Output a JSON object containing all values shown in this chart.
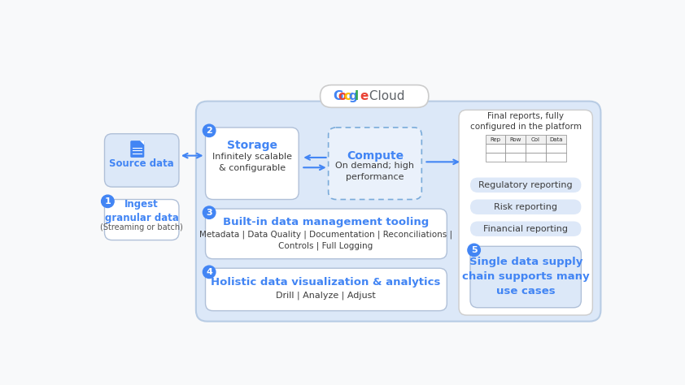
{
  "bg_color": "#f8f9fa",
  "main_bg": "#dce8f8",
  "panel_bg": "#eaf1fb",
  "box_bg": "#ffffff",
  "blue_circle": "#4285f4",
  "blue_text": "#4285f4",
  "dark_text": "#3c3c3c",
  "gray_text": "#555555",
  "pill_bg": "#dde8f8",
  "source_box_bg": "#dce8f8",
  "ingest_box_bg": "#ffffff",
  "right_panel_bg": "#ffffff",
  "arrow_color": "#4285f4",
  "google_blue": "#4285f4",
  "google_red": "#ea4335",
  "google_yellow": "#fbbc04",
  "google_green": "#34a853",
  "storage_title": "Storage",
  "storage_sub": "Infinitely scalable\n& configurable",
  "compute_title": "Compute",
  "compute_sub": "On demand; high\nperformance",
  "built_in_title": "Built-in data management tooling",
  "built_in_sub": "Metadata | Data Quality | Documentation | Reconciliations |\nControls | Full Logging",
  "holistic_title": "Holistic data visualization & analytics",
  "holistic_sub": "Drill | Analyze | Adjust",
  "source_title": "Source data",
  "ingest_title": "Ingest\ngranular data",
  "ingest_sub": "(Streaming or batch)",
  "final_reports_text": "Final reports, fully\nconfigured in the platform",
  "table_headers": [
    "Rep",
    "Row",
    "Col",
    "Data"
  ],
  "pill_labels": [
    "Regulatory reporting",
    "Risk reporting",
    "Financial reporting"
  ],
  "single_data_text": "Single data supply\nchain supports many\nuse cases",
  "numbers": [
    "1",
    "2",
    "3",
    "4",
    "5"
  ]
}
